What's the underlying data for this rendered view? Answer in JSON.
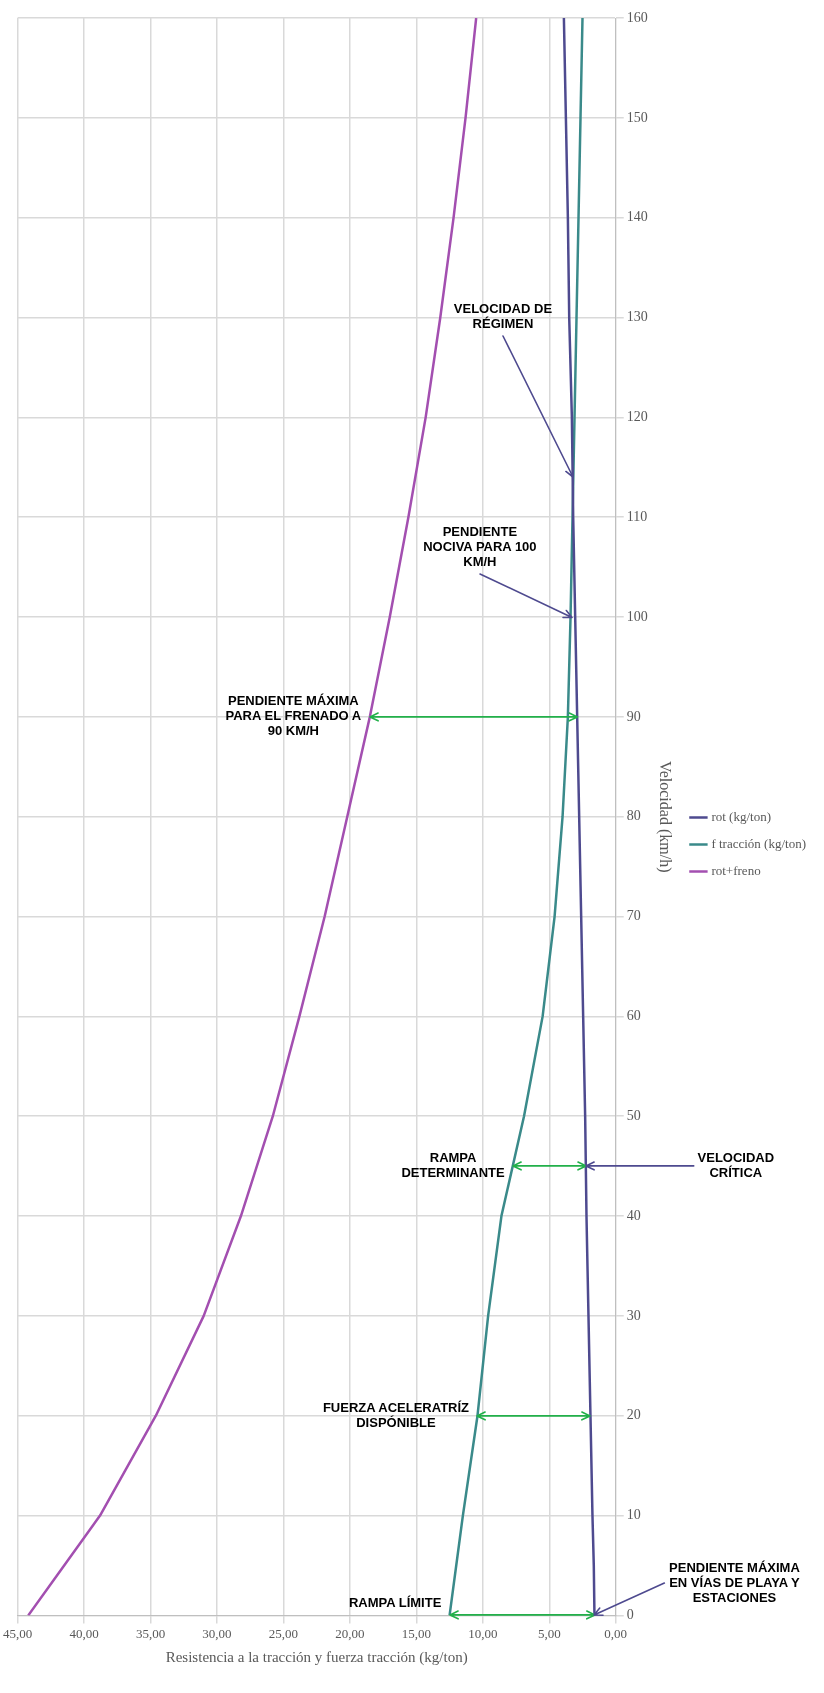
{
  "chart_data": {
    "type": "line",
    "xlabel": "Resistencia a la tracción y fuerza tracción (kg/ton)",
    "ylabel": "Velocidad (km/h)",
    "series": [
      {
        "name": "rot (kg/ton)",
        "color": "#4e4a8f",
        "x": [
          1.6,
          1.65,
          1.75,
          1.9,
          2.05,
          2.2,
          2.3,
          2.45,
          2.6,
          2.75,
          2.9,
          3.05,
          3.2,
          3.3,
          3.5,
          3.6,
          3.75,
          3.9
        ],
        "values": [
          0,
          5,
          10,
          20,
          30,
          40,
          50,
          60,
          70,
          80,
          90,
          100,
          110,
          120,
          130,
          140,
          150,
          160
        ]
      },
      {
        "name": "f tracción (kg/ton)",
        "color": "#3a8a8a",
        "x": [
          12.5,
          12.0,
          11.5,
          10.4,
          9.6,
          8.6,
          6.9,
          5.5,
          4.6,
          4.0,
          3.6,
          3.4,
          3.25,
          3.1,
          2.95,
          2.8,
          2.65,
          2.5
        ],
        "values": [
          0,
          5,
          10,
          20,
          30,
          40,
          50,
          60,
          70,
          80,
          90,
          100,
          110,
          120,
          130,
          140,
          150,
          160
        ]
      },
      {
        "name": "rot+freno",
        "color": "#a34fb0",
        "x": [
          44.2,
          41.5,
          38.8,
          34.6,
          31.0,
          28.2,
          25.8,
          23.8,
          21.9,
          20.2,
          18.5,
          17.0,
          15.6,
          14.3,
          13.2,
          12.2,
          11.3,
          10.5
        ],
        "values": [
          0,
          5,
          10,
          20,
          30,
          40,
          50,
          60,
          70,
          80,
          90,
          100,
          110,
          120,
          130,
          140,
          150,
          160
        ]
      }
    ],
    "xlim": [
      45,
      0
    ],
    "xticks": [
      {
        "value": 45,
        "label": "45,00"
      },
      {
        "value": 40,
        "label": "40,00"
      },
      {
        "value": 35,
        "label": "35,00"
      },
      {
        "value": 30,
        "label": "30,00"
      },
      {
        "value": 25,
        "label": "25,00"
      },
      {
        "value": 20,
        "label": "20,00"
      },
      {
        "value": 15,
        "label": "15,00"
      },
      {
        "value": 10,
        "label": "10,00"
      },
      {
        "value": 5,
        "label": "5,00"
      },
      {
        "value": 0,
        "label": "0,00"
      }
    ],
    "ylim": [
      0,
      160
    ],
    "yticks": [
      0,
      10,
      20,
      30,
      40,
      50,
      60,
      70,
      80,
      90,
      100,
      110,
      120,
      130,
      140,
      150,
      160
    ],
    "annotations": [
      {
        "text": "RAMPA LÍMITE",
        "x": 12.5,
        "y": 0
      },
      {
        "text": "FUERZA ACELERATRÍZ DISPÓNIBLE",
        "x": 10.4,
        "y": 20
      },
      {
        "text": "RAMPA DETERMINANTE",
        "x": 7.75,
        "y": 45
      },
      {
        "text": "PENDIENTE MÁXIMA PARA EL FRENADO A 90 KM/H",
        "x": 18.5,
        "y": 90
      },
      {
        "text": "PENDIENTE  NOCIVA PARA 100 KM/H",
        "x": 3.3,
        "y": 100
      },
      {
        "text": "VELOCIDAD DE RÉGIMEN",
        "x": 3.22,
        "y": 114
      },
      {
        "text": "VELOCIDAD CRÍTICA",
        "x": 2.25,
        "y": 45
      },
      {
        "text": "PENDIENTE MÁXIMA EN VÍAS DE PLAYA Y ESTACIONES",
        "x": 1.6,
        "y": 0
      }
    ],
    "grid": true,
    "legend": "right"
  }
}
